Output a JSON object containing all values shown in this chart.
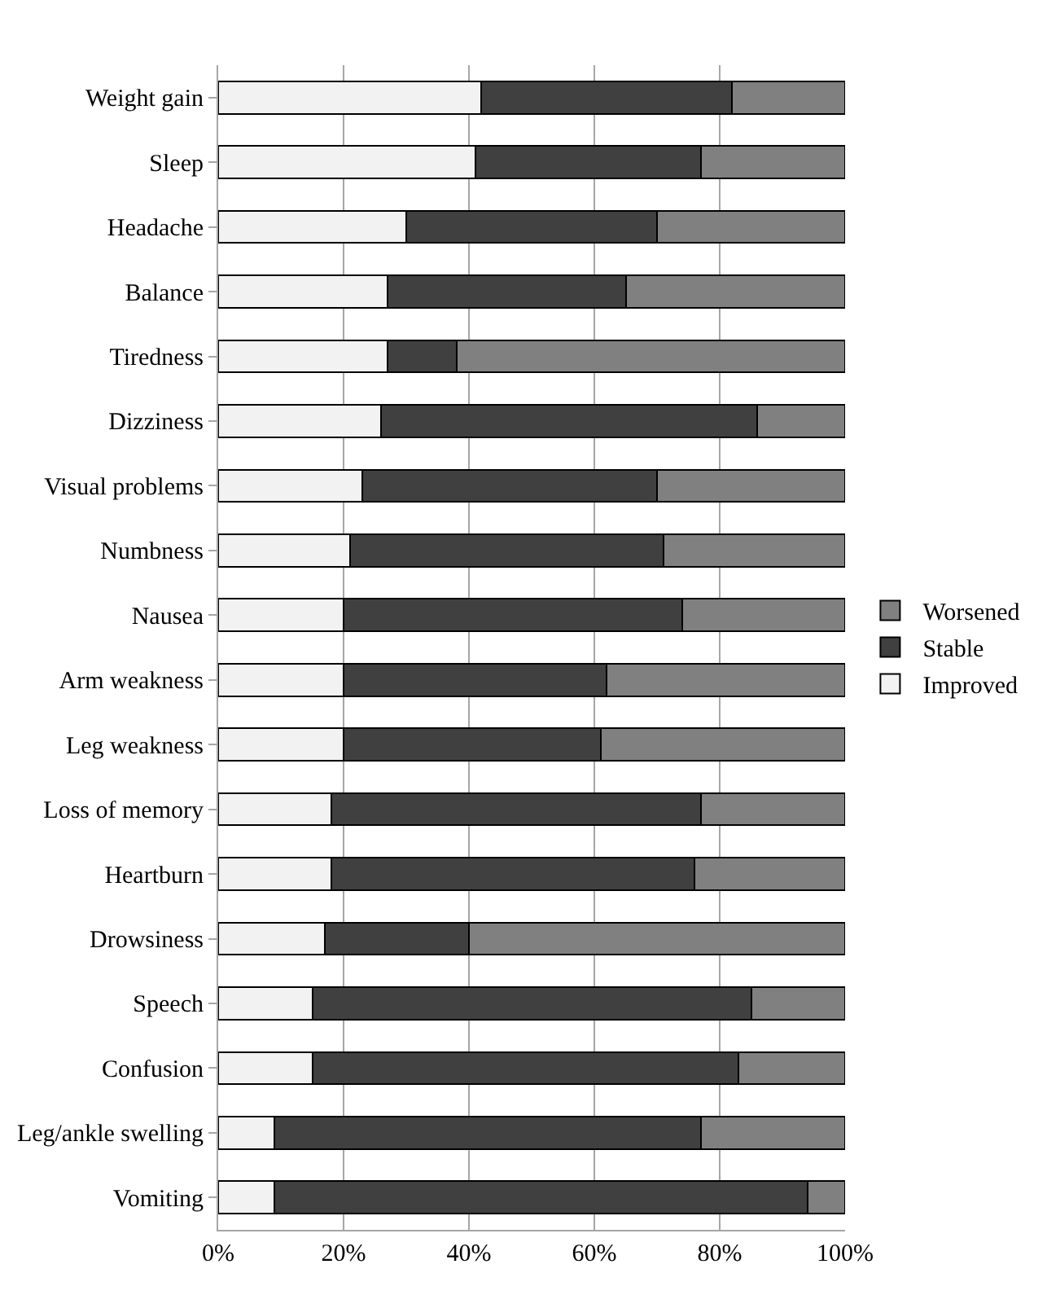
{
  "chart_data": {
    "type": "bar",
    "orientation": "horizontal",
    "stacked": true,
    "categories": [
      "Weight gain",
      "Sleep",
      "Headache",
      "Balance",
      "Tiredness",
      "Dizziness",
      "Visual problems",
      "Numbness",
      "Nausea",
      "Arm weakness",
      "Leg weakness",
      "Loss of memory",
      "Heartburn",
      "Drowsiness",
      "Speech",
      "Confusion",
      "Leg/ankle swelling",
      "Vomiting"
    ],
    "series": [
      {
        "name": "Improved",
        "color": "#f2f2f2",
        "values": [
          42,
          41,
          30,
          27,
          27,
          26,
          23,
          21,
          20,
          20,
          20,
          18,
          18,
          17,
          15,
          15,
          9,
          9
        ]
      },
      {
        "name": "Stable",
        "color": "#404040",
        "values": [
          40,
          36,
          40,
          38,
          11,
          60,
          47,
          50,
          54,
          42,
          41,
          59,
          58,
          23,
          70,
          68,
          68,
          85
        ]
      },
      {
        "name": "Worsened",
        "color": "#808080",
        "values": [
          18,
          23,
          30,
          35,
          62,
          14,
          30,
          29,
          26,
          38,
          39,
          23,
          24,
          60,
          15,
          17,
          23,
          6
        ]
      }
    ],
    "xlim": [
      0,
      100
    ],
    "xticks": [
      {
        "value": 0,
        "label": "0%"
      },
      {
        "value": 20,
        "label": "20%"
      },
      {
        "value": 40,
        "label": "40%"
      },
      {
        "value": 60,
        "label": "60%"
      },
      {
        "value": 80,
        "label": "80%"
      },
      {
        "value": 100,
        "label": "100%"
      }
    ],
    "grid": "x",
    "legend": "right"
  }
}
